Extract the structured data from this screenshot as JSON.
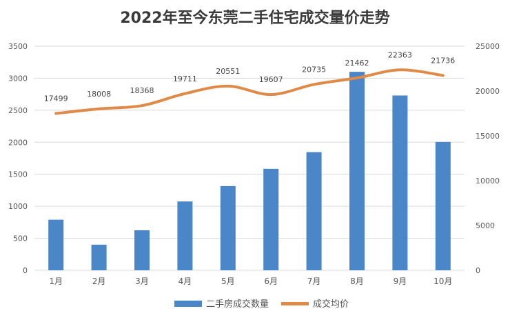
{
  "chart_data": {
    "type": "bar",
    "title": "2022年至今东莞二手住宅成交量价走势",
    "categories": [
      "1月",
      "2月",
      "3月",
      "4月",
      "5月",
      "6月",
      "7月",
      "8月",
      "9月",
      "10月"
    ],
    "series": [
      {
        "name": "二手房成交数量",
        "type": "bar",
        "axis": "left",
        "values": [
          790,
          400,
          625,
          1075,
          1315,
          1585,
          1845,
          3100,
          2730,
          2005
        ]
      },
      {
        "name": "成交均价",
        "type": "line",
        "axis": "right",
        "values": [
          17499,
          18008,
          18368,
          19711,
          20551,
          19607,
          20735,
          21462,
          22363,
          21736
        ],
        "labels": [
          "17499",
          "18008",
          "18368",
          "19711",
          "20551",
          "19607",
          "20735",
          "21462",
          "22363",
          "21736"
        ]
      }
    ],
    "y_left": {
      "range": [
        0,
        3500
      ],
      "ticks": [
        "0",
        "500",
        "1000",
        "1500",
        "2000",
        "2500",
        "3000",
        "3500"
      ]
    },
    "y_right": {
      "range": [
        0,
        25000
      ],
      "ticks": [
        "0",
        "5000",
        "10000",
        "15000",
        "20000",
        "25000"
      ]
    },
    "grid": true,
    "legend": "bottom-center",
    "colors": {
      "bar": "#4a86c8",
      "line": "#e08a48",
      "grid": "#d9d9d9",
      "title": "#3a3a3a",
      "text": "#555555"
    }
  }
}
